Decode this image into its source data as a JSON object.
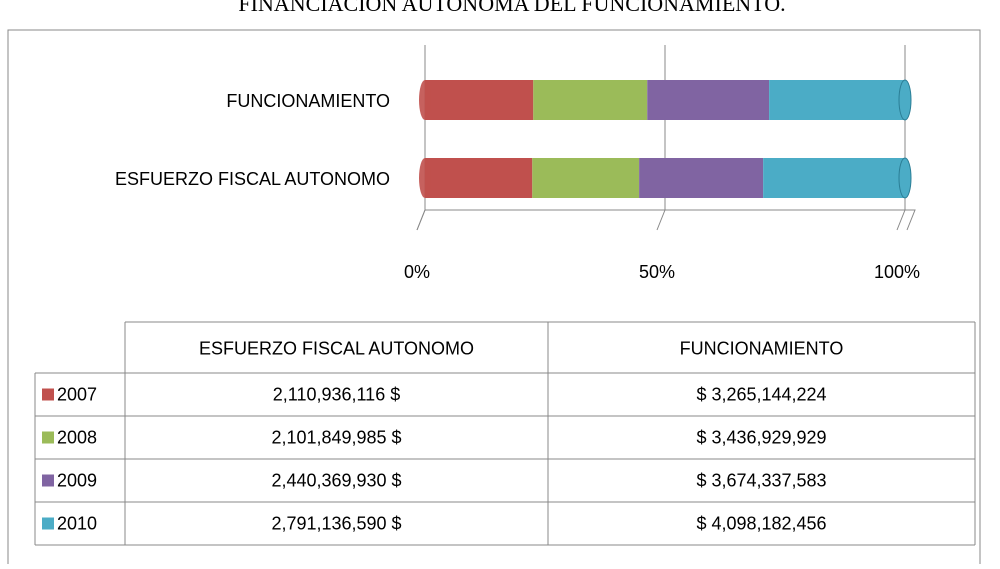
{
  "chart_data": {
    "type": "bar",
    "orientation": "horizontal",
    "stacked": "percent",
    "title": "FINANCIACION AUTONOMA DEL FUNCIONAMIENTO.",
    "categories": [
      "ESFUERZO FISCAL AUTONOMO",
      "FUNCIONAMIENTO"
    ],
    "series": [
      {
        "name": "2007",
        "color": "#c0504d",
        "values": [
          2110936116,
          3265144224
        ],
        "value_labels": [
          "2,110,936,116 $",
          "$ 3,265,144,224"
        ]
      },
      {
        "name": "2008",
        "color": "#9bbb59",
        "values": [
          2101849985,
          3436929929
        ],
        "value_labels": [
          "2,101,849,985 $",
          "$ 3,436,929,929"
        ]
      },
      {
        "name": "2009",
        "color": "#8064a2",
        "values": [
          2440369930,
          3674337583
        ],
        "value_labels": [
          "2,440,369,930 $",
          "$ 3,674,337,583"
        ]
      },
      {
        "name": "2010",
        "color": "#4bacc6",
        "values": [
          2791136590,
          4098182456
        ],
        "value_labels": [
          "2,791,136,590 $",
          "$ 4,098,182,456"
        ]
      }
    ],
    "xlim": [
      0,
      100
    ],
    "xticks": [
      {
        "value": 0,
        "label": "0%"
      },
      {
        "value": 50,
        "label": "50%"
      },
      {
        "value": 100,
        "label": "100%"
      }
    ],
    "grid": true,
    "data_table": true
  }
}
